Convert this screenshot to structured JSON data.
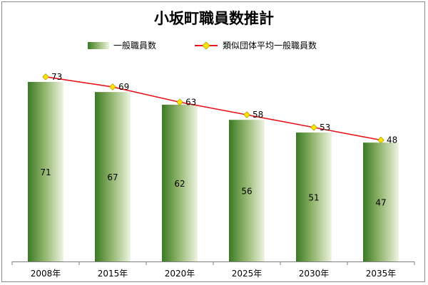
{
  "chart_data": {
    "type": "bar",
    "title": "小坂町職員数推計",
    "categories": [
      "2008年",
      "2015年",
      "2020年",
      "2025年",
      "2030年",
      "2035年"
    ],
    "series": [
      {
        "name": "一般職員数",
        "type": "bar",
        "values": [
          71,
          67,
          62,
          56,
          51,
          47
        ]
      },
      {
        "name": "類似団体平均一般職員数",
        "type": "line",
        "values": [
          73,
          69,
          63,
          58,
          53,
          48
        ]
      }
    ],
    "ylim": [
      0,
      80
    ],
    "grid": false,
    "legend": "top",
    "colors": {
      "bar_dark": "#3a7a24",
      "bar_mid": "#8fb36a",
      "bar_light": "#eef4e2",
      "line": "#e8141a",
      "marker_fill": "#ffe600",
      "marker_stroke": "#b59a00",
      "axis": "#7f7f7f"
    }
  }
}
